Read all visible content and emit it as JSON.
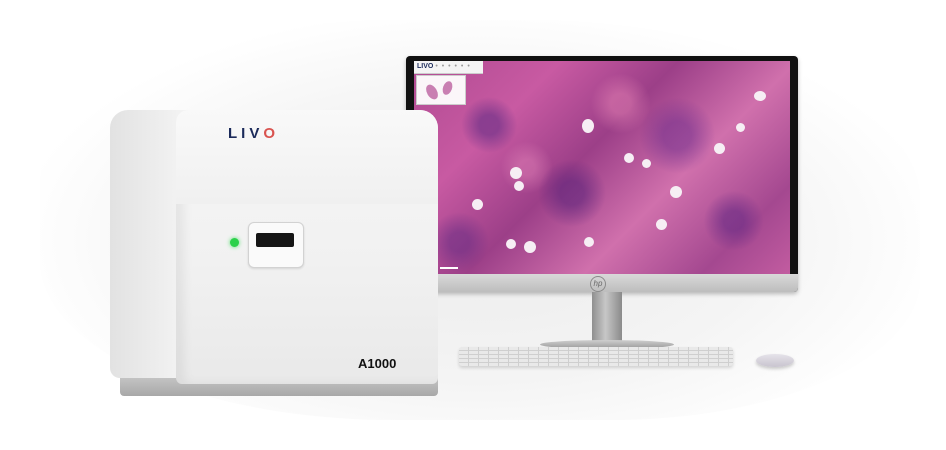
{
  "scene": {
    "description_label": "LIVO A1000 slide scanner with monitor",
    "scanner": {
      "brand_prefix": "LIV",
      "brand_suffix": "O",
      "model": "A1000",
      "led_color": "#2bd14a",
      "brand_color": "#1b2a5a",
      "brand_accent": "#d9534f"
    },
    "monitor": {
      "manufacturer_mark": "hp",
      "viewer": {
        "app_logo": "LIVO",
        "toolbar_dots": "• • • • • •"
      }
    }
  }
}
